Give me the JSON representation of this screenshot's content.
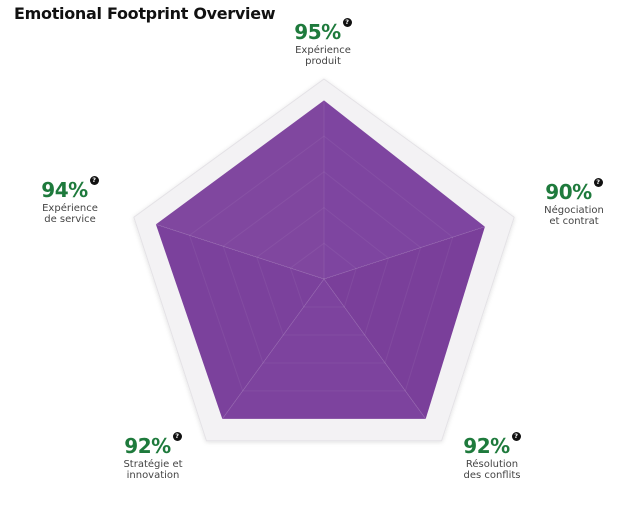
{
  "title": "Emotional Footprint Overview",
  "info_glyph": "?",
  "colors": {
    "fill": "#7b3f98",
    "frame": "#f0eef2",
    "value_text": "#1e7a3c"
  },
  "chart_data": {
    "type": "radar",
    "title": "Emotional Footprint Overview",
    "scale_max": 100,
    "unit": "%",
    "categories": [
      "Expérience\nproduit",
      "Négociation\net contrat",
      "Résolution\ndes conflits",
      "Stratégie et\ninnovation",
      "Expérience\nde service"
    ],
    "values": [
      95,
      90,
      92,
      92,
      94
    ]
  },
  "metrics": [
    {
      "value": "95",
      "unit": "%",
      "label": "Expérience\nproduit"
    },
    {
      "value": "90",
      "unit": "%",
      "label": "Négociation\net contrat"
    },
    {
      "value": "92",
      "unit": "%",
      "label": "Résolution\ndes conflits"
    },
    {
      "value": "92",
      "unit": "%",
      "label": "Stratégie et\ninnovation"
    },
    {
      "value": "94",
      "unit": "%",
      "label": "Expérience\nde service"
    }
  ]
}
